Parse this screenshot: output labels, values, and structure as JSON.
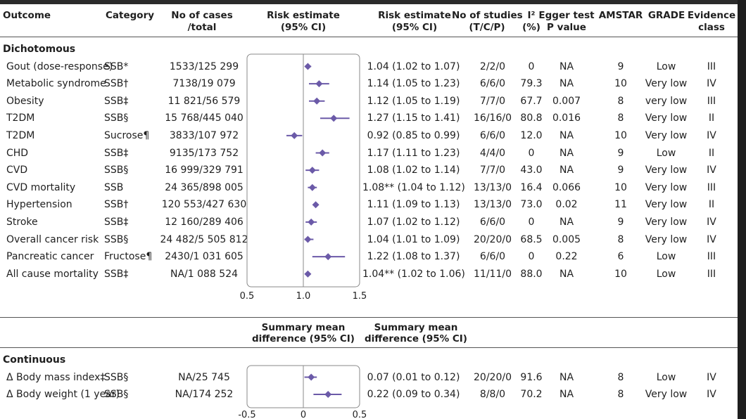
{
  "header": {
    "outcome": "Outcome",
    "category": "Category",
    "cases_l1": "No of cases",
    "cases_l2": "/total",
    "plot_l1": "Risk estimate",
    "plot_l2": "(95% CI)",
    "est_l1": "Risk estimate",
    "est_l2": "(95% CI)",
    "studies_l1": "No of studies",
    "studies_l2": "(T/C/P)",
    "i2_l1": "I²",
    "i2_l2": "(%)",
    "egger_l1": "Egger test",
    "egger_l2": "P value",
    "amstar": "AMSTAR",
    "grade": "GRADE",
    "evidence_l1": "Evidence",
    "evidence_l2": "class"
  },
  "sections": {
    "dichotomous": "Dichotomous",
    "continuous": "Continuous"
  },
  "continuous_header": {
    "plot_l1": "Summary mean",
    "plot_l2": "difference (95% CI)",
    "est_l1": "Summary mean",
    "est_l2": "difference (95% CI)"
  },
  "dichotomous_rows": [
    {
      "outcome": "Gout (dose-response)",
      "category": "SSB*",
      "cases": "1533/125 299",
      "estimate": "1.04 (1.02 to 1.07)",
      "studies": "2/2/0",
      "i2": "0",
      "egger": "NA",
      "amstar": "9",
      "grade": "Low",
      "evidence": "III"
    },
    {
      "outcome": "Metabolic syndrome",
      "category": "SSB†",
      "cases": "7138/19 079",
      "estimate": "1.14 (1.05 to 1.23)",
      "studies": "6/6/0",
      "i2": "79.3",
      "egger": "NA",
      "amstar": "10",
      "grade": "Very low",
      "evidence": "IV"
    },
    {
      "outcome": "Obesity",
      "category": "SSB‡",
      "cases": "11 821/56 579",
      "estimate": "1.12 (1.05 to 1.19)",
      "studies": "7/7/0",
      "i2": "67.7",
      "egger": "0.007",
      "amstar": "8",
      "grade": "very low",
      "evidence": "III"
    },
    {
      "outcome": "T2DM",
      "category": "SSB§",
      "cases": "15 768/445 040",
      "estimate": "1.27 (1.15 to 1.41)",
      "studies": "16/16/0",
      "i2": "80.8",
      "egger": "0.016",
      "amstar": "8",
      "grade": "Very low",
      "evidence": "II"
    },
    {
      "outcome": "T2DM",
      "category": "Sucrose¶",
      "cases": "3833/107 972",
      "estimate": "0.92 (0.85 to 0.99)",
      "studies": "6/6/0",
      "i2": "12.0",
      "egger": "NA",
      "amstar": "10",
      "grade": "Very low",
      "evidence": "IV"
    },
    {
      "outcome": "CHD",
      "category": "SSB‡",
      "cases": "9135/173 752",
      "estimate": "1.17 (1.11 to 1.23)",
      "studies": "4/4/0",
      "i2": "0",
      "egger": "NA",
      "amstar": "9",
      "grade": "Low",
      "evidence": "II"
    },
    {
      "outcome": "CVD",
      "category": "SSB§",
      "cases": "16 999/329 791",
      "estimate": "1.08 (1.02 to 1.14)",
      "studies": "7/7/0",
      "i2": "43.0",
      "egger": "NA",
      "amstar": "9",
      "grade": "Very low",
      "evidence": "IV"
    },
    {
      "outcome": "CVD mortality",
      "category": "SSB",
      "cases": "24 365/898 005",
      "estimate": "1.08** (1.04 to 1.12)",
      "studies": "13/13/0",
      "i2": "16.4",
      "egger": "0.066",
      "amstar": "10",
      "grade": "Very low",
      "evidence": "III"
    },
    {
      "outcome": "Hypertension",
      "category": "SSB†",
      "cases": "120 553/427 630",
      "estimate": "1.11 (1.09 to 1.13)",
      "studies": "13/13/0",
      "i2": "73.0",
      "egger": "0.02",
      "amstar": "11",
      "grade": "Very low",
      "evidence": "II"
    },
    {
      "outcome": "Stroke",
      "category": "SSB‡",
      "cases": "12 160/289 406",
      "estimate": "1.07 (1.02 to 1.12)",
      "studies": "6/6/0",
      "i2": "0",
      "egger": "NA",
      "amstar": "9",
      "grade": "Very low",
      "evidence": "IV"
    },
    {
      "outcome": "Overall cancer risk",
      "category": "SSB§",
      "cases": "24 482/5 505 812",
      "estimate": "1.04 (1.01 to 1.09)",
      "studies": "20/20/0",
      "i2": "68.5",
      "egger": "0.005",
      "amstar": "8",
      "grade": "Very low",
      "evidence": "IV"
    },
    {
      "outcome": "Pancreatic cancer",
      "category": "Fructose¶",
      "cases": "2430/1 031 605",
      "estimate": "1.22 (1.08 to 1.37)",
      "studies": "6/6/0",
      "i2": "0",
      "egger": "0.22",
      "amstar": "6",
      "grade": "Low",
      "evidence": "III"
    },
    {
      "outcome": "All cause mortality",
      "category": "SSB‡",
      "cases": "NA/1 088 524",
      "estimate": "1.04** (1.02 to 1.06)",
      "studies": "11/11/0",
      "i2": "88.0",
      "egger": "NA",
      "amstar": "10",
      "grade": "Low",
      "evidence": "III"
    }
  ],
  "continuous_rows": [
    {
      "outcome": "Δ Body mass index‡",
      "category": "SSB§",
      "cases": "NA/25 745",
      "estimate": "0.07 (0.01 to 0.12)",
      "studies": "20/20/0",
      "i2": "91.6",
      "egger": "NA",
      "amstar": "8",
      "grade": "Low",
      "evidence": "IV"
    },
    {
      "outcome": "Δ Body weight (1 year)",
      "category": "SSB§",
      "cases": "NA/174 252",
      "estimate": "0.22 (0.09 to 0.34)",
      "studies": "8/8/0",
      "i2": "70.2",
      "egger": "NA",
      "amstar": "8",
      "grade": "Very low",
      "evidence": "IV"
    }
  ],
  "chart_data": [
    {
      "type": "scatter",
      "title": "Risk estimate (95% CI)",
      "categories": [
        "Gout (dose-response)",
        "Metabolic syndrome",
        "Obesity",
        "T2DM",
        "T2DM",
        "CHD",
        "CVD",
        "CVD mortality",
        "Hypertension",
        "Stroke",
        "Overall cancer risk",
        "Pancreatic cancer",
        "All cause mortality"
      ],
      "values": [
        1.04,
        1.14,
        1.12,
        1.27,
        0.92,
        1.17,
        1.08,
        1.08,
        1.11,
        1.07,
        1.04,
        1.22,
        1.04
      ],
      "lower": [
        1.02,
        1.05,
        1.05,
        1.15,
        0.85,
        1.11,
        1.02,
        1.04,
        1.09,
        1.02,
        1.01,
        1.08,
        1.02
      ],
      "upper": [
        1.07,
        1.23,
        1.19,
        1.41,
        0.99,
        1.23,
        1.14,
        1.12,
        1.13,
        1.12,
        1.09,
        1.37,
        1.06
      ],
      "xlim": [
        0.5,
        1.5
      ],
      "reference_line": 1.0,
      "ticks": [
        "0.5",
        "1.0",
        "1.5"
      ],
      "marker_color": "#6b5aa8"
    },
    {
      "type": "scatter",
      "title": "Summary mean difference (95% CI)",
      "categories": [
        "Δ Body mass index‡",
        "Δ Body weight (1 year)"
      ],
      "values": [
        0.07,
        0.22
      ],
      "lower": [
        0.01,
        0.09
      ],
      "upper": [
        0.12,
        0.34
      ],
      "xlim": [
        -0.5,
        0.5
      ],
      "reference_line": 0,
      "ticks": [
        "-0.5",
        "0",
        "0.5"
      ],
      "marker_color": "#6b5aa8"
    }
  ]
}
